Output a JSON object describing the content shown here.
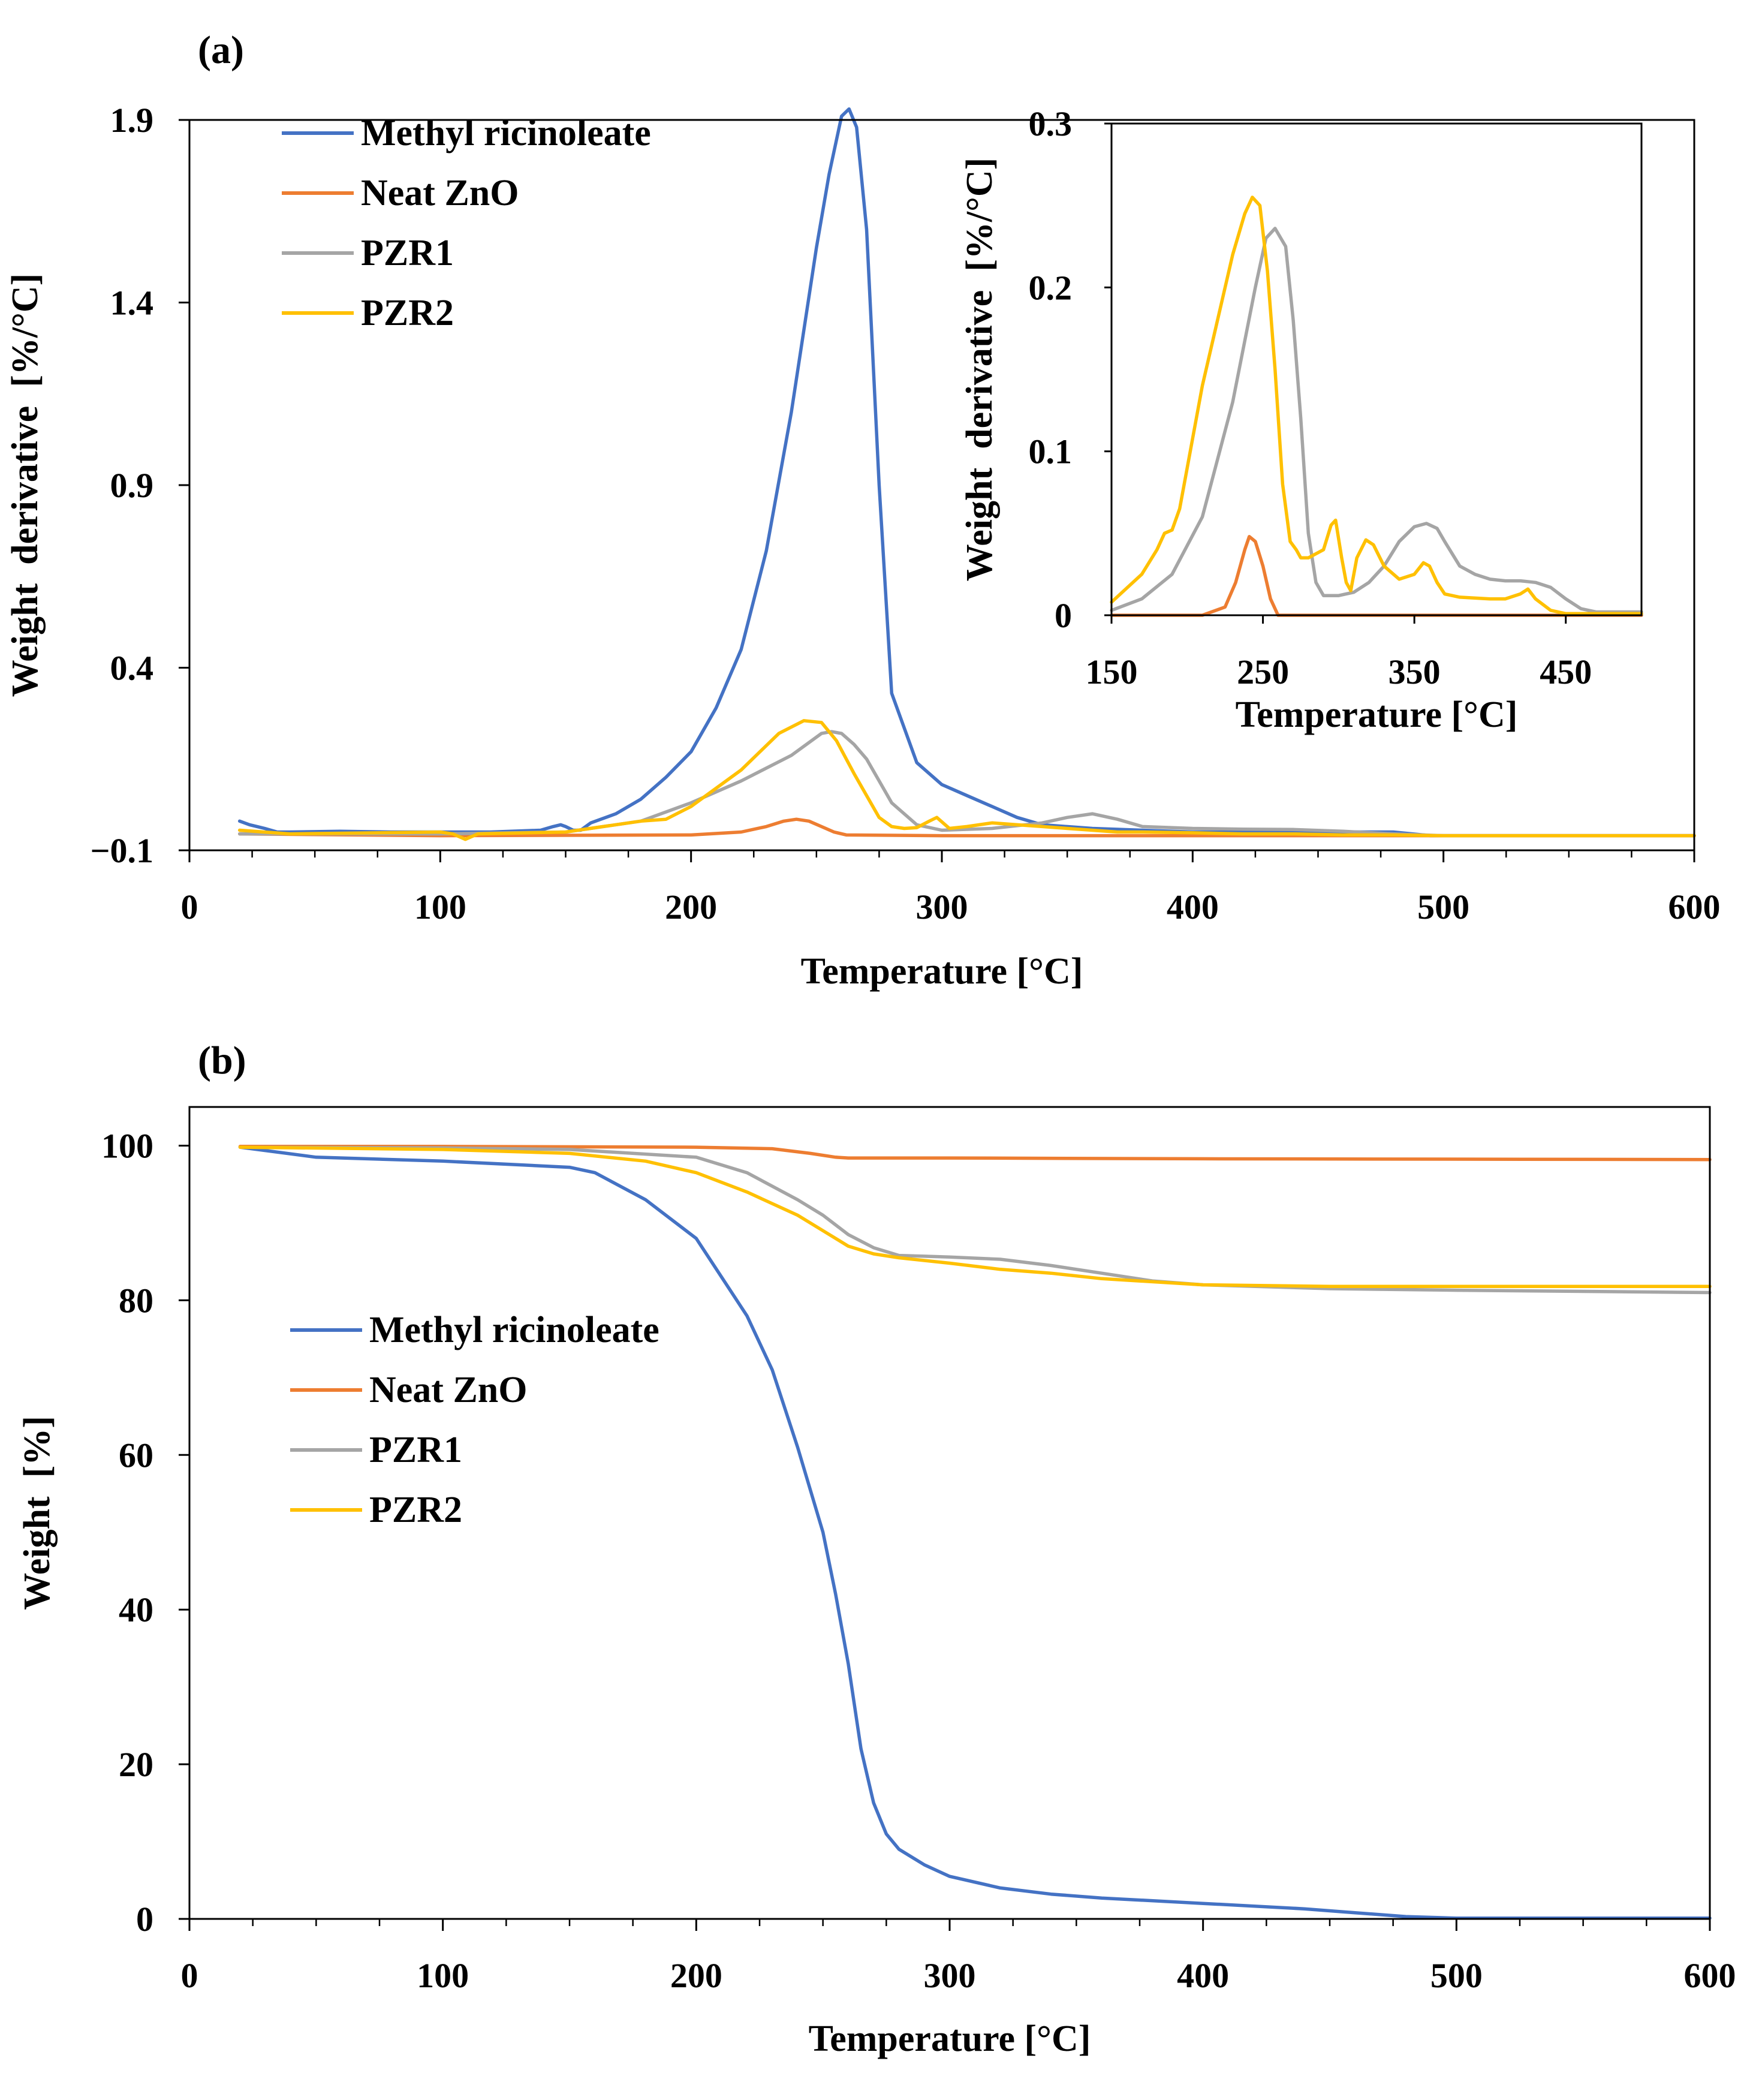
{
  "chart_data": [
    {
      "type": "line",
      "panel_label": "(a)",
      "xlabel": "Temperature [°C]",
      "ylabel": "Weight  derivative  [%/°C]",
      "xlim": [
        0,
        600
      ],
      "ylim": [
        -0.1,
        1.9
      ],
      "x_ticks": [
        0,
        100,
        200,
        300,
        400,
        500,
        600
      ],
      "x_tick_labels": [
        "0",
        "100",
        "200",
        "300",
        "400",
        "500",
        "600"
      ],
      "y_ticks": [
        -0.1,
        0.4,
        0.9,
        1.4,
        1.9
      ],
      "y_tick_labels": [
        "−0.1",
        "0.4",
        "0.9",
        "1.4",
        "1.9"
      ],
      "legend_position": "top-left",
      "series": [
        {
          "name": "Methyl ricinoleate",
          "color": "#4472C4",
          "x": [
            20,
            24,
            27,
            30,
            35,
            40,
            60,
            80,
            100,
            120,
            140,
            145,
            148,
            150,
            153,
            156,
            160,
            170,
            180,
            190,
            200,
            210,
            220,
            230,
            240,
            250,
            255,
            260,
            263,
            266,
            270,
            275,
            280,
            290,
            300,
            310,
            320,
            330,
            340,
            360,
            400,
            440,
            460,
            480,
            495,
            500,
            600
          ],
          "y": [
            -0.02,
            -0.03,
            -0.035,
            -0.04,
            -0.05,
            -0.05,
            -0.048,
            -0.05,
            -0.05,
            -0.05,
            -0.045,
            -0.035,
            -0.03,
            -0.035,
            -0.045,
            -0.045,
            -0.025,
            0.0,
            0.04,
            0.1,
            0.17,
            0.29,
            0.45,
            0.72,
            1.1,
            1.55,
            1.75,
            1.91,
            1.93,
            1.88,
            1.6,
            0.9,
            0.33,
            0.14,
            0.08,
            0.05,
            0.02,
            -0.01,
            -0.03,
            -0.04,
            -0.05,
            -0.05,
            -0.05,
            -0.05,
            -0.06,
            -0.06,
            -0.06
          ]
        },
        {
          "name": "Neat ZnO",
          "color": "#ED7D31",
          "x": [
            20,
            100,
            200,
            220,
            230,
            237,
            242,
            247,
            252,
            257,
            262,
            300,
            600
          ],
          "y": [
            -0.055,
            -0.06,
            -0.058,
            -0.05,
            -0.035,
            -0.02,
            -0.015,
            -0.02,
            -0.035,
            -0.05,
            -0.058,
            -0.06,
            -0.06
          ]
        },
        {
          "name": "PZR1",
          "color": "#A5A5A5",
          "x": [
            20,
            100,
            150,
            180,
            200,
            220,
            240,
            252,
            256,
            260,
            265,
            270,
            275,
            280,
            290,
            300,
            320,
            340,
            350,
            360,
            370,
            380,
            400,
            420,
            440,
            460,
            480,
            500,
            600
          ],
          "y": [
            -0.055,
            -0.055,
            -0.05,
            -0.02,
            0.03,
            0.09,
            0.16,
            0.22,
            0.225,
            0.22,
            0.19,
            0.15,
            0.09,
            0.03,
            -0.03,
            -0.045,
            -0.04,
            -0.025,
            -0.01,
            0.0,
            -0.015,
            -0.035,
            -0.04,
            -0.042,
            -0.043,
            -0.048,
            -0.055,
            -0.06,
            -0.06
          ]
        },
        {
          "name": "PZR2",
          "color": "#FFC000",
          "x": [
            20,
            40,
            100,
            105,
            110,
            115,
            150,
            180,
            190,
            200,
            220,
            235,
            245,
            252,
            258,
            265,
            270,
            275,
            280,
            285,
            290,
            295,
            298,
            303,
            310,
            320,
            330,
            340,
            350,
            360,
            370,
            380,
            400,
            420,
            440,
            460,
            480,
            500,
            600
          ],
          "y": [
            -0.045,
            -0.055,
            -0.05,
            -0.055,
            -0.07,
            -0.055,
            -0.05,
            -0.02,
            -0.015,
            0.02,
            0.12,
            0.22,
            0.255,
            0.25,
            0.2,
            0.11,
            0.05,
            -0.01,
            -0.035,
            -0.04,
            -0.038,
            -0.02,
            -0.01,
            -0.04,
            -0.035,
            -0.025,
            -0.03,
            -0.035,
            -0.04,
            -0.045,
            -0.05,
            -0.05,
            -0.052,
            -0.055,
            -0.055,
            -0.058,
            -0.058,
            -0.06,
            -0.06
          ]
        }
      ]
    },
    {
      "type": "line",
      "inset_of": "(a)",
      "xlabel": "Temperature [°C]",
      "ylabel": "Weight  derivative  [%/°C]",
      "xlim": [
        150,
        500
      ],
      "ylim": [
        0,
        0.3
      ],
      "x_ticks": [
        150,
        250,
        350,
        450
      ],
      "x_tick_labels": [
        "150",
        "250",
        "350",
        "450"
      ],
      "y_ticks": [
        0,
        0.1,
        0.2,
        0.3
      ],
      "y_tick_labels": [
        "0",
        "0.1",
        "0.2",
        "0.3"
      ],
      "series": [
        {
          "name": "Neat ZnO",
          "color": "#ED7D31",
          "x": [
            150,
            210,
            225,
            232,
            238,
            241,
            245,
            250,
            255,
            260,
            500
          ],
          "y": [
            0,
            0,
            0.005,
            0.02,
            0.04,
            0.048,
            0.045,
            0.03,
            0.01,
            0,
            0
          ]
        },
        {
          "name": "PZR1",
          "color": "#A5A5A5",
          "x": [
            150,
            170,
            190,
            210,
            230,
            245,
            252,
            258,
            265,
            270,
            275,
            280,
            285,
            290,
            300,
            310,
            320,
            330,
            340,
            350,
            358,
            365,
            370,
            380,
            390,
            400,
            410,
            420,
            430,
            440,
            450,
            460,
            470,
            480,
            500
          ],
          "y": [
            0.003,
            0.01,
            0.025,
            0.06,
            0.13,
            0.2,
            0.23,
            0.236,
            0.225,
            0.18,
            0.12,
            0.05,
            0.02,
            0.012,
            0.012,
            0.014,
            0.02,
            0.03,
            0.045,
            0.054,
            0.056,
            0.053,
            0.045,
            0.03,
            0.025,
            0.022,
            0.021,
            0.021,
            0.02,
            0.017,
            0.01,
            0.004,
            0.002,
            0.002,
            0.002
          ]
        },
        {
          "name": "PZR2",
          "color": "#FFC000",
          "x": [
            150,
            170,
            180,
            185,
            190,
            195,
            200,
            210,
            220,
            230,
            238,
            243,
            248,
            253,
            258,
            263,
            268,
            272,
            275,
            280,
            290,
            295,
            298,
            302,
            305,
            308,
            312,
            318,
            323,
            330,
            340,
            350,
            356,
            360,
            365,
            370,
            380,
            400,
            410,
            420,
            425,
            430,
            440,
            450,
            500
          ],
          "y": [
            0.008,
            0.025,
            0.04,
            0.05,
            0.052,
            0.065,
            0.09,
            0.14,
            0.18,
            0.22,
            0.245,
            0.255,
            0.25,
            0.21,
            0.15,
            0.08,
            0.045,
            0.04,
            0.035,
            0.035,
            0.04,
            0.055,
            0.058,
            0.035,
            0.02,
            0.015,
            0.035,
            0.046,
            0.043,
            0.03,
            0.022,
            0.025,
            0.032,
            0.03,
            0.02,
            0.013,
            0.011,
            0.01,
            0.01,
            0.013,
            0.016,
            0.01,
            0.003,
            0.001,
            0.001
          ]
        }
      ]
    },
    {
      "type": "line",
      "panel_label": "(b)",
      "xlabel": "Temperature [°C]",
      "ylabel": "Weight  [%]",
      "xlim": [
        0,
        600
      ],
      "ylim": [
        0,
        105
      ],
      "x_ticks": [
        0,
        100,
        200,
        300,
        400,
        500,
        600
      ],
      "x_tick_labels": [
        "0",
        "100",
        "200",
        "300",
        "400",
        "500",
        "600"
      ],
      "y_ticks": [
        0,
        20,
        40,
        60,
        80,
        100
      ],
      "y_tick_labels": [
        "0",
        "20",
        "40",
        "60",
        "80",
        "100"
      ],
      "legend_position": "center-left",
      "series": [
        {
          "name": "Methyl ricinoleate",
          "color": "#4472C4",
          "x": [
            20,
            50,
            100,
            150,
            160,
            180,
            200,
            220,
            230,
            240,
            250,
            255,
            260,
            265,
            270,
            275,
            280,
            290,
            300,
            320,
            340,
            360,
            400,
            440,
            460,
            480,
            500,
            600
          ],
          "y": [
            99.8,
            98.5,
            98.0,
            97.2,
            96.5,
            93.0,
            88.0,
            78.0,
            71.0,
            61.0,
            50.0,
            42.0,
            33.0,
            22.0,
            15.0,
            11.0,
            9.0,
            7.0,
            5.5,
            4.0,
            3.2,
            2.7,
            2.0,
            1.3,
            0.8,
            0.3,
            0.1,
            0.1
          ]
        },
        {
          "name": "Neat ZnO",
          "color": "#ED7D31",
          "x": [
            20,
            100,
            200,
            230,
            245,
            255,
            260,
            300,
            400,
            600
          ],
          "y": [
            99.9,
            99.9,
            99.8,
            99.6,
            99.0,
            98.5,
            98.4,
            98.4,
            98.3,
            98.2
          ]
        },
        {
          "name": "PZR1",
          "color": "#A5A5A5",
          "x": [
            20,
            100,
            150,
            200,
            220,
            240,
            250,
            260,
            270,
            280,
            290,
            300,
            320,
            340,
            360,
            380,
            400,
            450,
            500,
            600
          ],
          "y": [
            99.8,
            99.7,
            99.5,
            98.5,
            96.5,
            93.0,
            91.0,
            88.5,
            86.8,
            85.8,
            85.7,
            85.6,
            85.3,
            84.5,
            83.5,
            82.5,
            82.0,
            81.5,
            81.3,
            81.0
          ]
        },
        {
          "name": "PZR2",
          "color": "#FFC000",
          "x": [
            20,
            100,
            150,
            180,
            200,
            220,
            240,
            250,
            260,
            270,
            280,
            300,
            320,
            340,
            360,
            400,
            450,
            500,
            600
          ],
          "y": [
            99.8,
            99.5,
            99.0,
            98.0,
            96.5,
            94.0,
            91.0,
            89.0,
            87.0,
            86.0,
            85.5,
            84.8,
            84.0,
            83.5,
            82.8,
            82.0,
            81.8,
            81.8,
            81.8
          ]
        }
      ]
    }
  ]
}
